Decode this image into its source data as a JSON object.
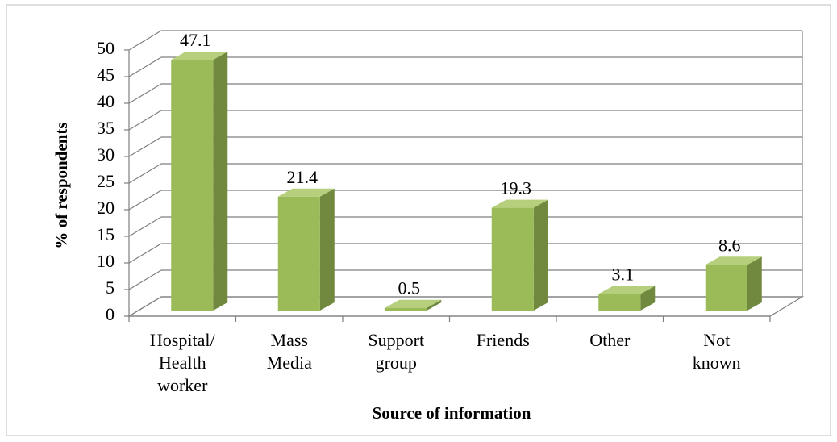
{
  "chart_data": {
    "type": "bar3d",
    "categories": [
      "Hospital/\nHealth\nworker",
      "Mass\nMedia",
      "Support\ngroup",
      "Friends",
      "Other",
      "Not\nknown"
    ],
    "values": [
      47.1,
      21.4,
      0.5,
      19.3,
      3.1,
      8.6
    ],
    "color": "#9bbb59",
    "ylim": [
      0,
      50
    ],
    "yticks": [
      0,
      5,
      10,
      15,
      20,
      25,
      30,
      35,
      40,
      45,
      50
    ],
    "xlabel": "Source of information",
    "ylabel": "% of respondents",
    "grid": true
  }
}
